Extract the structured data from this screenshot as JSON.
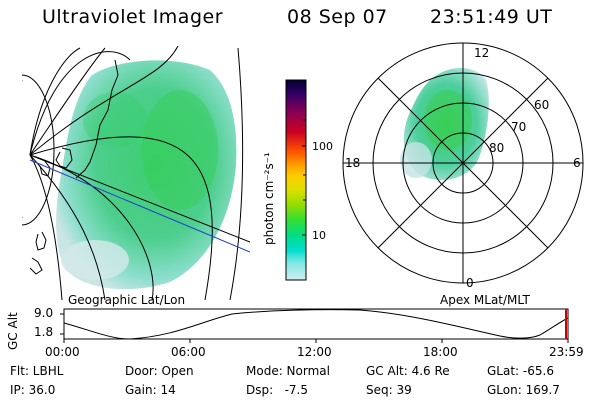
{
  "header": {
    "instrument": "Ultraviolet Imager",
    "date": "08 Sep 07",
    "time": "23:51:49 UT"
  },
  "left_map": {
    "label": "Geographic Lat/Lon"
  },
  "right_map": {
    "label": "Apex MLat/MLT",
    "mlt_labels": {
      "top": "12",
      "left": "18",
      "right": "6",
      "bottom": "0"
    },
    "lat_labels": [
      "60",
      "70",
      "80"
    ]
  },
  "colorbar": {
    "title": "photon cm⁻²s⁻¹",
    "ticks": [
      "100",
      "10"
    ],
    "colors": [
      "#000033",
      "#330066",
      "#880055",
      "#cc0022",
      "#ff5500",
      "#ff9900",
      "#ffcc00",
      "#dde000",
      "#99dd00",
      "#33dd33",
      "#00dd88",
      "#00ddcc",
      "#88e8e8",
      "#d0ecec"
    ]
  },
  "timeline": {
    "axis_label": "GC Alt",
    "y_ticks": [
      "9.0",
      "1.8"
    ],
    "x_ticks": [
      "00:00",
      "06:00",
      "12:00",
      "18:00",
      "23:59"
    ],
    "marker_color": "#cc0000"
  },
  "info": {
    "flt": "Flt: LBHL",
    "ip": "IP: 36.0",
    "door": "Door: Open",
    "gain": "Gain: 14",
    "mode": "Mode: Normal",
    "dsp": "Dsp:   -7.5",
    "gcalt": "GC Alt: 4.6 Re",
    "seq": "Seq: 39",
    "glat": "GLat: -65.6",
    "glon": "GLon: 169.7"
  }
}
